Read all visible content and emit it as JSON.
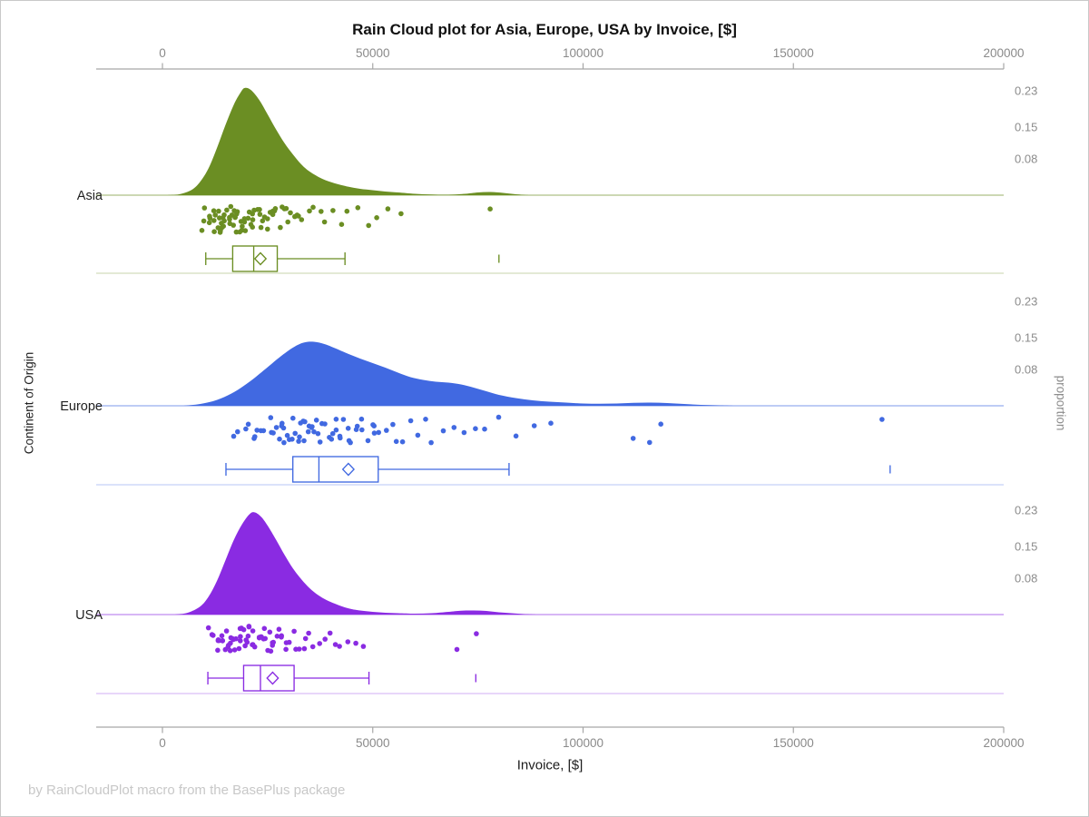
{
  "title": "Rain Cloud plot for Asia, Europe, USA by Invoice, [$]",
  "footer": "by RainCloudPlot macro from the BasePlus package",
  "axes": {
    "x_label": "Invoice, [$]",
    "y_left_label": "Continent of Origin",
    "y_right_label": "proportion",
    "x_ticks": [
      0,
      50000,
      100000,
      150000,
      200000
    ],
    "x_tick_labels": [
      "0",
      "50000",
      "100000",
      "150000",
      "200000"
    ],
    "x_range": [
      0,
      200000
    ],
    "right_ticks": [
      0.23,
      0.15,
      0.08
    ],
    "right_tick_labels": [
      "0.23",
      "0.15",
      "0.08"
    ]
  },
  "colors": {
    "asia": "#6b8e23",
    "europe": "#4169e1",
    "usa": "#8a2be2",
    "axis_line": "#a6a6a6",
    "tick_label": "#8a8a8a",
    "category_label": "#1f1f1f",
    "prop_label": "#8c8c8c"
  },
  "chart_data": {
    "type": "raincloud",
    "x_axis": {
      "label": "Invoice, [$]",
      "range": [
        0,
        200000
      ],
      "ticks": [
        0,
        50000,
        100000,
        150000,
        200000
      ]
    },
    "proportion_ticks": [
      0.23,
      0.15,
      0.08
    ],
    "legend_position": "none",
    "grid": false,
    "groups": [
      {
        "name": "Asia",
        "color": "#6b8e23",
        "density": [
          [
            1000,
            0
          ],
          [
            4000,
            0.002
          ],
          [
            7000,
            0.012
          ],
          [
            9000,
            0.03
          ],
          [
            11000,
            0.06
          ],
          [
            13000,
            0.105
          ],
          [
            15000,
            0.155
          ],
          [
            17000,
            0.2
          ],
          [
            18500,
            0.225
          ],
          [
            19500,
            0.236
          ],
          [
            21000,
            0.232
          ],
          [
            23000,
            0.21
          ],
          [
            25000,
            0.178
          ],
          [
            27000,
            0.145
          ],
          [
            29000,
            0.115
          ],
          [
            31000,
            0.09
          ],
          [
            33000,
            0.068
          ],
          [
            35000,
            0.052
          ],
          [
            38000,
            0.036
          ],
          [
            41000,
            0.026
          ],
          [
            44000,
            0.019
          ],
          [
            47000,
            0.014
          ],
          [
            50000,
            0.011
          ],
          [
            53000,
            0.008
          ],
          [
            56000,
            0.006
          ],
          [
            60000,
            0.003
          ],
          [
            64000,
            0.0015
          ],
          [
            68000,
            0.001
          ],
          [
            72000,
            0.003
          ],
          [
            75000,
            0.006
          ],
          [
            78000,
            0.007
          ],
          [
            81000,
            0.005
          ],
          [
            84000,
            0.002
          ],
          [
            87000,
            0
          ]
        ],
        "points": [
          8900,
          9800,
          10300,
          10700,
          11200,
          11400,
          11900,
          12100,
          12400,
          12600,
          12900,
          13000,
          13200,
          13600,
          13800,
          14000,
          14100,
          14300,
          14700,
          14900,
          15200,
          15500,
          15600,
          15800,
          16100,
          16300,
          16500,
          16700,
          16900,
          17200,
          17400,
          17600,
          17800,
          18100,
          18400,
          18700,
          18900,
          19100,
          19300,
          19700,
          19900,
          20100,
          20400,
          20900,
          21100,
          21300,
          21800,
          22200,
          22500,
          22700,
          23100,
          23600,
          24000,
          24200,
          24800,
          25300,
          25500,
          25900,
          26500,
          27000,
          27200,
          27900,
          28300,
          28700,
          29500,
          30000,
          30400,
          31300,
          31800,
          32300,
          33400,
          34600,
          35900,
          37300,
          38800,
          40400,
          42200,
          44100,
          46200,
          48500,
          51000,
          53700,
          56600,
          78300
        ],
        "box": {
          "whisker_low": 10300,
          "q1": 16700,
          "median": 21700,
          "mean": 23300,
          "q3": 27300,
          "whisker_high": 43400,
          "outliers": [
            80000
          ]
        }
      },
      {
        "name": "Europe",
        "color": "#4169e1",
        "density": [
          [
            5000,
            0
          ],
          [
            9000,
            0.004
          ],
          [
            13000,
            0.013
          ],
          [
            17000,
            0.03
          ],
          [
            21000,
            0.055
          ],
          [
            25000,
            0.085
          ],
          [
            28000,
            0.108
          ],
          [
            31000,
            0.128
          ],
          [
            33500,
            0.139
          ],
          [
            36000,
            0.141
          ],
          [
            38500,
            0.136
          ],
          [
            41000,
            0.127
          ],
          [
            44000,
            0.115
          ],
          [
            47000,
            0.104
          ],
          [
            50000,
            0.094
          ],
          [
            53000,
            0.084
          ],
          [
            56000,
            0.073
          ],
          [
            59000,
            0.063
          ],
          [
            62000,
            0.057
          ],
          [
            65000,
            0.053
          ],
          [
            68000,
            0.051
          ],
          [
            71000,
            0.047
          ],
          [
            74000,
            0.04
          ],
          [
            77000,
            0.032
          ],
          [
            80000,
            0.024
          ],
          [
            84000,
            0.017
          ],
          [
            88000,
            0.012
          ],
          [
            92000,
            0.009
          ],
          [
            96000,
            0.007
          ],
          [
            100000,
            0.005
          ],
          [
            104000,
            0.0045
          ],
          [
            108000,
            0.005
          ],
          [
            112000,
            0.0065
          ],
          [
            116000,
            0.007
          ],
          [
            120000,
            0.006
          ],
          [
            124000,
            0.004
          ],
          [
            128000,
            0.002
          ],
          [
            132000,
            0.001
          ],
          [
            136000,
            0
          ]
        ],
        "points": [
          16500,
          18000,
          19500,
          20500,
          21500,
          22300,
          23000,
          23800,
          24500,
          25200,
          25800,
          26400,
          27000,
          27600,
          28100,
          28400,
          28700,
          29200,
          29800,
          30300,
          30600,
          30900,
          31400,
          32000,
          32500,
          32800,
          33100,
          33600,
          34200,
          34800,
          35000,
          35300,
          35900,
          36500,
          37100,
          37400,
          37700,
          38300,
          39000,
          39600,
          39800,
          40300,
          41000,
          41700,
          42000,
          42500,
          43200,
          44000,
          44400,
          44900,
          45700,
          46600,
          47000,
          47600,
          48600,
          49600,
          50000,
          50700,
          51900,
          53100,
          54400,
          55800,
          57300,
          58900,
          60600,
          62400,
          64400,
          66500,
          68800,
          71300,
          74000,
          77000,
          80300,
          84000,
          88100,
          92700,
          111500,
          116200,
          118400,
          171500
        ],
        "box": {
          "whisker_low": 15100,
          "q1": 31000,
          "median": 37200,
          "mean": 44200,
          "q3": 51300,
          "whisker_high": 82400,
          "outliers": [
            173000
          ]
        }
      },
      {
        "name": "USA",
        "color": "#8a2be2",
        "density": [
          [
            3000,
            0
          ],
          [
            6000,
            0.004
          ],
          [
            9000,
            0.018
          ],
          [
            11000,
            0.04
          ],
          [
            13000,
            0.075
          ],
          [
            15000,
            0.12
          ],
          [
            17000,
            0.165
          ],
          [
            19000,
            0.2
          ],
          [
            20800,
            0.222
          ],
          [
            22000,
            0.225
          ],
          [
            23500,
            0.215
          ],
          [
            25000,
            0.196
          ],
          [
            27000,
            0.165
          ],
          [
            29000,
            0.132
          ],
          [
            31000,
            0.102
          ],
          [
            33000,
            0.078
          ],
          [
            35000,
            0.058
          ],
          [
            37000,
            0.043
          ],
          [
            39000,
            0.032
          ],
          [
            41000,
            0.024
          ],
          [
            43000,
            0.017
          ],
          [
            45000,
            0.012
          ],
          [
            47000,
            0.009
          ],
          [
            50000,
            0.006
          ],
          [
            53000,
            0.004
          ],
          [
            56000,
            0.003
          ],
          [
            60000,
            0.002
          ],
          [
            64000,
            0.003
          ],
          [
            68000,
            0.006
          ],
          [
            71000,
            0.0085
          ],
          [
            74000,
            0.009
          ],
          [
            77000,
            0.008
          ],
          [
            80000,
            0.005
          ],
          [
            83000,
            0.003
          ],
          [
            86000,
            0.001
          ],
          [
            89000,
            0
          ]
        ],
        "points": [
          10800,
          11500,
          12100,
          12600,
          13000,
          13400,
          13800,
          14100,
          14300,
          14500,
          14800,
          15200,
          15500,
          15700,
          15900,
          16200,
          16600,
          16900,
          17100,
          17300,
          17600,
          18000,
          18300,
          18500,
          18700,
          19000,
          19400,
          19600,
          19800,
          20100,
          20500,
          20700,
          20900,
          21300,
          21700,
          21900,
          22100,
          22500,
          23000,
          23200,
          23400,
          23900,
          24300,
          24500,
          24800,
          25300,
          25800,
          26100,
          26400,
          26900,
          27500,
          27800,
          28100,
          28700,
          29400,
          29700,
          30100,
          30800,
          31600,
          32400,
          33200,
          34100,
          35100,
          36100,
          37200,
          38400,
          39700,
          41100,
          42600,
          44200,
          46000,
          47900,
          70400,
          75000
        ],
        "box": {
          "whisker_low": 10800,
          "q1": 19300,
          "median": 23300,
          "mean": 26200,
          "q3": 31300,
          "whisker_high": 49100,
          "outliers": [
            74500
          ]
        }
      }
    ]
  }
}
